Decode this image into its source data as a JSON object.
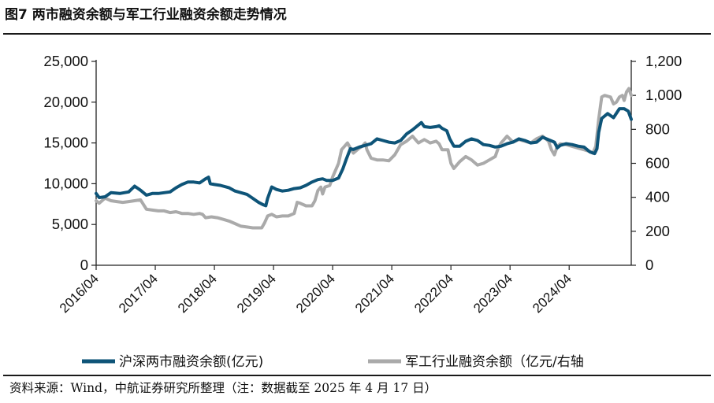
{
  "title": "图7  两市融资余额与军工行业融资余额走势情况",
  "source": "资料来源：Wind，中航证券研究所整理（注：数据截至 2025 年 4 月 17 日）",
  "colors": {
    "series1": "#0e5478",
    "series2": "#aaaaaa",
    "axis": "#222222"
  },
  "chart_data": {
    "type": "line",
    "x_labels": [
      "2016/04",
      "2017/04",
      "2018/04",
      "2019/04",
      "2020/04",
      "2021/04",
      "2022/04",
      "2023/04",
      "2024/04"
    ],
    "x_range": [
      2016.25,
      2025.3
    ],
    "y_left": {
      "ticks": [
        "0",
        "5,000",
        "10,000",
        "15,000",
        "20,000",
        "25,000"
      ],
      "range": [
        0,
        25000
      ]
    },
    "y_right": {
      "ticks": [
        "0",
        "200",
        "400",
        "600",
        "800",
        "1,000",
        "1,200"
      ],
      "range": [
        0,
        1200
      ]
    },
    "series": [
      {
        "name": "沪深两市融资余额(亿元)",
        "axis": "left",
        "points": [
          [
            2016.25,
            8800
          ],
          [
            2016.3,
            8300
          ],
          [
            2016.4,
            8400
          ],
          [
            2016.5,
            8900
          ],
          [
            2016.65,
            8800
          ],
          [
            2016.8,
            9000
          ],
          [
            2016.9,
            9700
          ],
          [
            2017.0,
            9200
          ],
          [
            2017.1,
            8600
          ],
          [
            2017.2,
            8800
          ],
          [
            2017.3,
            8800
          ],
          [
            2017.4,
            8900
          ],
          [
            2017.5,
            9000
          ],
          [
            2017.6,
            9500
          ],
          [
            2017.7,
            9900
          ],
          [
            2017.8,
            10200
          ],
          [
            2017.9,
            10200
          ],
          [
            2018.0,
            10100
          ],
          [
            2018.1,
            10600
          ],
          [
            2018.15,
            10800
          ],
          [
            2018.18,
            10000
          ],
          [
            2018.25,
            9900
          ],
          [
            2018.35,
            9800
          ],
          [
            2018.5,
            9500
          ],
          [
            2018.6,
            9100
          ],
          [
            2018.7,
            8900
          ],
          [
            2018.8,
            8700
          ],
          [
            2018.9,
            8200
          ],
          [
            2019.0,
            7700
          ],
          [
            2019.08,
            7400
          ],
          [
            2019.12,
            7300
          ],
          [
            2019.15,
            8200
          ],
          [
            2019.22,
            9600
          ],
          [
            2019.3,
            9300
          ],
          [
            2019.4,
            9100
          ],
          [
            2019.5,
            9200
          ],
          [
            2019.6,
            9400
          ],
          [
            2019.7,
            9500
          ],
          [
            2019.8,
            9800
          ],
          [
            2019.9,
            10200
          ],
          [
            2020.0,
            10500
          ],
          [
            2020.08,
            10600
          ],
          [
            2020.15,
            10400
          ],
          [
            2020.25,
            10400
          ],
          [
            2020.35,
            10700
          ],
          [
            2020.42,
            11800
          ],
          [
            2020.48,
            13000
          ],
          [
            2020.55,
            14300
          ],
          [
            2020.6,
            14200
          ],
          [
            2020.7,
            14500
          ],
          [
            2020.8,
            14700
          ],
          [
            2020.9,
            14900
          ],
          [
            2021.0,
            15500
          ],
          [
            2021.1,
            15300
          ],
          [
            2021.2,
            15100
          ],
          [
            2021.3,
            15000
          ],
          [
            2021.4,
            15300
          ],
          [
            2021.5,
            16100
          ],
          [
            2021.6,
            16600
          ],
          [
            2021.7,
            17200
          ],
          [
            2021.75,
            17500
          ],
          [
            2021.8,
            17000
          ],
          [
            2021.9,
            16900
          ],
          [
            2022.0,
            17000
          ],
          [
            2022.05,
            17100
          ],
          [
            2022.1,
            16800
          ],
          [
            2022.18,
            16500
          ],
          [
            2022.23,
            15500
          ],
          [
            2022.3,
            14600
          ],
          [
            2022.4,
            14600
          ],
          [
            2022.5,
            15200
          ],
          [
            2022.6,
            15500
          ],
          [
            2022.7,
            15300
          ],
          [
            2022.8,
            14800
          ],
          [
            2022.9,
            14700
          ],
          [
            2023.0,
            14500
          ],
          [
            2023.1,
            14600
          ],
          [
            2023.2,
            14900
          ],
          [
            2023.3,
            15100
          ],
          [
            2023.4,
            15500
          ],
          [
            2023.5,
            15300
          ],
          [
            2023.6,
            15000
          ],
          [
            2023.7,
            15100
          ],
          [
            2023.8,
            15700
          ],
          [
            2023.9,
            15400
          ],
          [
            2024.0,
            15100
          ],
          [
            2024.05,
            14400
          ],
          [
            2024.1,
            14700
          ],
          [
            2024.2,
            14900
          ],
          [
            2024.3,
            14800
          ],
          [
            2024.4,
            14600
          ],
          [
            2024.5,
            14500
          ],
          [
            2024.6,
            13900
          ],
          [
            2024.68,
            13700
          ],
          [
            2024.72,
            14300
          ],
          [
            2024.75,
            16300
          ],
          [
            2024.8,
            18000
          ],
          [
            2024.9,
            18600
          ],
          [
            2025.0,
            18100
          ],
          [
            2025.1,
            19200
          ],
          [
            2025.18,
            19200
          ],
          [
            2025.25,
            18900
          ],
          [
            2025.3,
            17900
          ]
        ]
      },
      {
        "name": "军工行业融资余额（亿元/右轴",
        "axis": "right",
        "points": [
          [
            2016.25,
            380
          ],
          [
            2016.3,
            365
          ],
          [
            2016.4,
            395
          ],
          [
            2016.5,
            380
          ],
          [
            2016.6,
            375
          ],
          [
            2016.7,
            370
          ],
          [
            2016.8,
            375
          ],
          [
            2016.9,
            380
          ],
          [
            2017.0,
            385
          ],
          [
            2017.1,
            330
          ],
          [
            2017.2,
            325
          ],
          [
            2017.3,
            320
          ],
          [
            2017.4,
            320
          ],
          [
            2017.5,
            310
          ],
          [
            2017.6,
            315
          ],
          [
            2017.7,
            305
          ],
          [
            2017.8,
            305
          ],
          [
            2017.9,
            300
          ],
          [
            2018.0,
            305
          ],
          [
            2018.05,
            300
          ],
          [
            2018.1,
            280
          ],
          [
            2018.2,
            285
          ],
          [
            2018.3,
            280
          ],
          [
            2018.4,
            270
          ],
          [
            2018.5,
            260
          ],
          [
            2018.6,
            245
          ],
          [
            2018.7,
            230
          ],
          [
            2018.8,
            225
          ],
          [
            2018.9,
            220
          ],
          [
            2019.0,
            220
          ],
          [
            2019.05,
            220
          ],
          [
            2019.1,
            250
          ],
          [
            2019.15,
            290
          ],
          [
            2019.22,
            300
          ],
          [
            2019.3,
            285
          ],
          [
            2019.4,
            290
          ],
          [
            2019.5,
            290
          ],
          [
            2019.6,
            305
          ],
          [
            2019.65,
            370
          ],
          [
            2019.7,
            365
          ],
          [
            2019.8,
            350
          ],
          [
            2019.9,
            350
          ],
          [
            2019.95,
            380
          ],
          [
            2020.0,
            440
          ],
          [
            2020.05,
            460
          ],
          [
            2020.08,
            420
          ],
          [
            2020.12,
            460
          ],
          [
            2020.2,
            470
          ],
          [
            2020.25,
            520
          ],
          [
            2020.3,
            560
          ],
          [
            2020.35,
            600
          ],
          [
            2020.4,
            680
          ],
          [
            2020.45,
            700
          ],
          [
            2020.5,
            720
          ],
          [
            2020.55,
            690
          ],
          [
            2020.6,
            660
          ],
          [
            2020.7,
            690
          ],
          [
            2020.75,
            700
          ],
          [
            2020.8,
            720
          ],
          [
            2020.83,
            680
          ],
          [
            2020.9,
            630
          ],
          [
            2021.0,
            620
          ],
          [
            2021.1,
            620
          ],
          [
            2021.2,
            615
          ],
          [
            2021.3,
            650
          ],
          [
            2021.4,
            710
          ],
          [
            2021.5,
            730
          ],
          [
            2021.6,
            760
          ],
          [
            2021.7,
            720
          ],
          [
            2021.8,
            740
          ],
          [
            2021.9,
            720
          ],
          [
            2022.0,
            730
          ],
          [
            2022.05,
            715
          ],
          [
            2022.1,
            680
          ],
          [
            2022.2,
            680
          ],
          [
            2022.25,
            600
          ],
          [
            2022.3,
            570
          ],
          [
            2022.4,
            610
          ],
          [
            2022.5,
            640
          ],
          [
            2022.6,
            620
          ],
          [
            2022.7,
            590
          ],
          [
            2022.8,
            600
          ],
          [
            2022.9,
            620
          ],
          [
            2023.0,
            640
          ],
          [
            2023.05,
            690
          ],
          [
            2023.1,
            720
          ],
          [
            2023.2,
            760
          ],
          [
            2023.3,
            725
          ],
          [
            2023.4,
            740
          ],
          [
            2023.5,
            730
          ],
          [
            2023.6,
            720
          ],
          [
            2023.7,
            745
          ],
          [
            2023.8,
            760
          ],
          [
            2023.9,
            730
          ],
          [
            2023.95,
            680
          ],
          [
            2024.0,
            650
          ],
          [
            2024.05,
            700
          ],
          [
            2024.1,
            715
          ],
          [
            2024.2,
            710
          ],
          [
            2024.3,
            700
          ],
          [
            2024.4,
            690
          ],
          [
            2024.5,
            680
          ],
          [
            2024.6,
            670
          ],
          [
            2024.65,
            660
          ],
          [
            2024.7,
            700
          ],
          [
            2024.75,
            860
          ],
          [
            2024.8,
            990
          ],
          [
            2024.85,
            1000
          ],
          [
            2024.95,
            990
          ],
          [
            2025.0,
            950
          ],
          [
            2025.05,
            960
          ],
          [
            2025.1,
            990
          ],
          [
            2025.15,
            1000
          ],
          [
            2025.18,
            970
          ],
          [
            2025.22,
            1020
          ],
          [
            2025.26,
            1040
          ],
          [
            2025.3,
            1000
          ]
        ]
      }
    ]
  }
}
